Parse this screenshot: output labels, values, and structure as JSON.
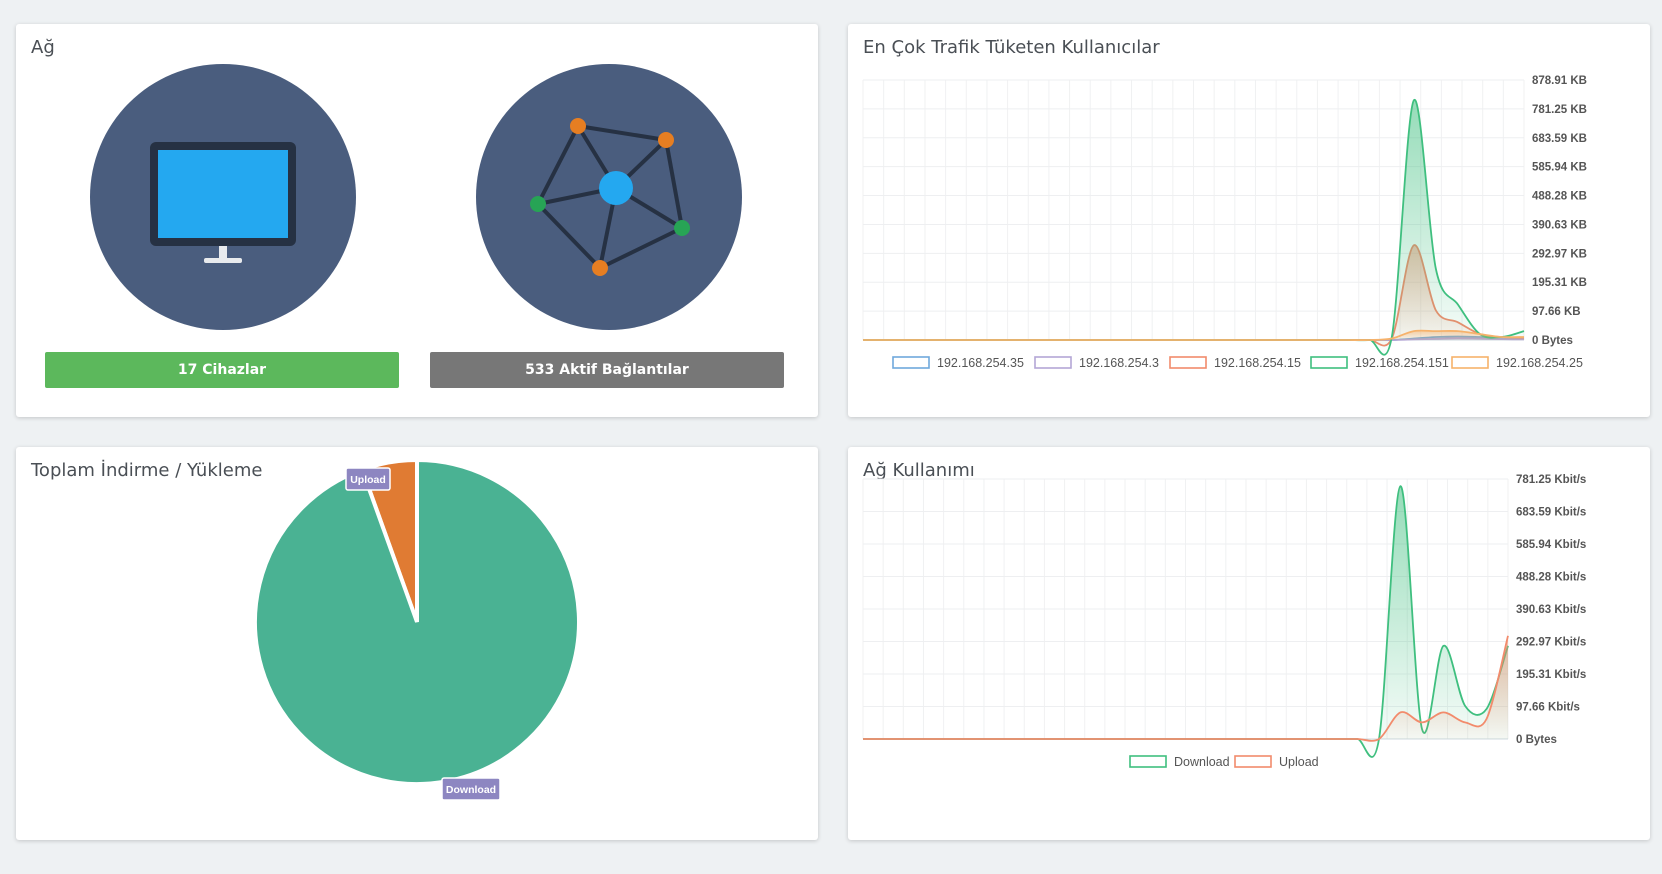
{
  "network": {
    "title": "Ağ",
    "devices_label": "17 Cihazlar",
    "connections_label": "533 Aktif Bağlantılar",
    "devices_color": "#5cb85c",
    "connections_color": "#777777",
    "circle_color": "#4a5d7e"
  },
  "top_users": {
    "title": "En Çok Trafik Tüketen Kullanıcılar"
  },
  "total": {
    "title": "Toplam İndirme / Yükleme"
  },
  "usage": {
    "title": "Ağ Kullanımı"
  },
  "chart_data": [
    {
      "type": "area",
      "title": "En Çok Trafik Tüketen Kullanıcılar",
      "y_ticks": [
        "0 Bytes",
        "97.66 KB",
        "195.31 KB",
        "292.97 KB",
        "390.63 KB",
        "488.28 KB",
        "585.94 KB",
        "683.59 KB",
        "781.25 KB",
        "878.91 KB"
      ],
      "ylim": [
        0,
        878.91
      ],
      "yunit": "KB",
      "grid": true,
      "legend_position": "bottom",
      "x": [
        0,
        2,
        4,
        6,
        8,
        10,
        12,
        14,
        16,
        18,
        20,
        22,
        24,
        26,
        28,
        30,
        32,
        34,
        36,
        38,
        40,
        42,
        44,
        46,
        48,
        50,
        52,
        54,
        56,
        58,
        60
      ],
      "series": [
        {
          "name": "192.168.254.35",
          "color": "#6fa8dc",
          "values": [
            0,
            0,
            0,
            0,
            0,
            0,
            0,
            0,
            0,
            0,
            0,
            0,
            0,
            0,
            0,
            0,
            0,
            0,
            0,
            0,
            0,
            0,
            0,
            0,
            0,
            5,
            10,
            12,
            10,
            6,
            4
          ]
        },
        {
          "name": "192.168.254.3",
          "color": "#b4a7d6",
          "values": [
            0,
            0,
            0,
            0,
            0,
            0,
            0,
            0,
            0,
            0,
            0,
            0,
            0,
            0,
            0,
            0,
            0,
            0,
            0,
            0,
            0,
            0,
            0,
            0,
            0,
            2,
            4,
            6,
            5,
            3,
            2
          ]
        },
        {
          "name": "192.168.254.15",
          "color": "#f28b6c",
          "values": [
            0,
            0,
            0,
            0,
            0,
            0,
            0,
            0,
            0,
            0,
            0,
            0,
            0,
            0,
            0,
            0,
            0,
            0,
            0,
            0,
            0,
            0,
            0,
            0,
            5,
            320,
            100,
            60,
            20,
            10,
            8
          ]
        },
        {
          "name": "192.168.254.151",
          "color": "#3fbf7f",
          "values": [
            0,
            0,
            0,
            0,
            0,
            0,
            0,
            0,
            0,
            0,
            0,
            0,
            0,
            0,
            0,
            0,
            0,
            0,
            0,
            0,
            0,
            0,
            0,
            0,
            10,
            810,
            240,
            120,
            20,
            10,
            30
          ]
        },
        {
          "name": "192.168.254.25",
          "color": "#f6b26b",
          "values": [
            0,
            0,
            0,
            0,
            0,
            0,
            0,
            0,
            0,
            0,
            0,
            0,
            0,
            0,
            0,
            0,
            0,
            0,
            0,
            0,
            0,
            0,
            0,
            0,
            5,
            30,
            30,
            30,
            20,
            10,
            10
          ]
        }
      ]
    },
    {
      "type": "pie",
      "title": "Toplam İndirme / Yükleme",
      "labels": [
        "Upload",
        "Download"
      ],
      "values": [
        5.5,
        94.5
      ],
      "colors": [
        "#e07b33",
        "#4ab293"
      ]
    },
    {
      "type": "area",
      "title": "Ağ Kullanımı",
      "y_ticks": [
        "0 Bytes",
        "97.66 Kbit/s",
        "195.31 Kbit/s",
        "292.97 Kbit/s",
        "390.63 Kbit/s",
        "488.28 Kbit/s",
        "585.94 Kbit/s",
        "683.59 Kbit/s",
        "781.25 Kbit/s"
      ],
      "ylim": [
        0,
        781.25
      ],
      "yunit": "Kbit/s",
      "grid": true,
      "legend_position": "bottom",
      "x": [
        0,
        2,
        4,
        6,
        8,
        10,
        12,
        14,
        16,
        18,
        20,
        22,
        24,
        26,
        28,
        30,
        32,
        34,
        36,
        38,
        40,
        42,
        44,
        46,
        48,
        50,
        52,
        54,
        56,
        58,
        60
      ],
      "series": [
        {
          "name": "Download",
          "color": "#3fbf7f",
          "values": [
            0,
            0,
            0,
            0,
            0,
            0,
            0,
            0,
            0,
            0,
            0,
            0,
            0,
            0,
            0,
            0,
            0,
            0,
            0,
            0,
            0,
            0,
            0,
            0,
            0,
            760,
            30,
            280,
            100,
            90,
            280
          ]
        },
        {
          "name": "Upload",
          "color": "#f28b6c",
          "values": [
            0,
            0,
            0,
            0,
            0,
            0,
            0,
            0,
            0,
            0,
            0,
            0,
            0,
            0,
            0,
            0,
            0,
            0,
            0,
            0,
            0,
            0,
            0,
            0,
            0,
            80,
            50,
            80,
            50,
            60,
            310
          ]
        }
      ]
    }
  ]
}
